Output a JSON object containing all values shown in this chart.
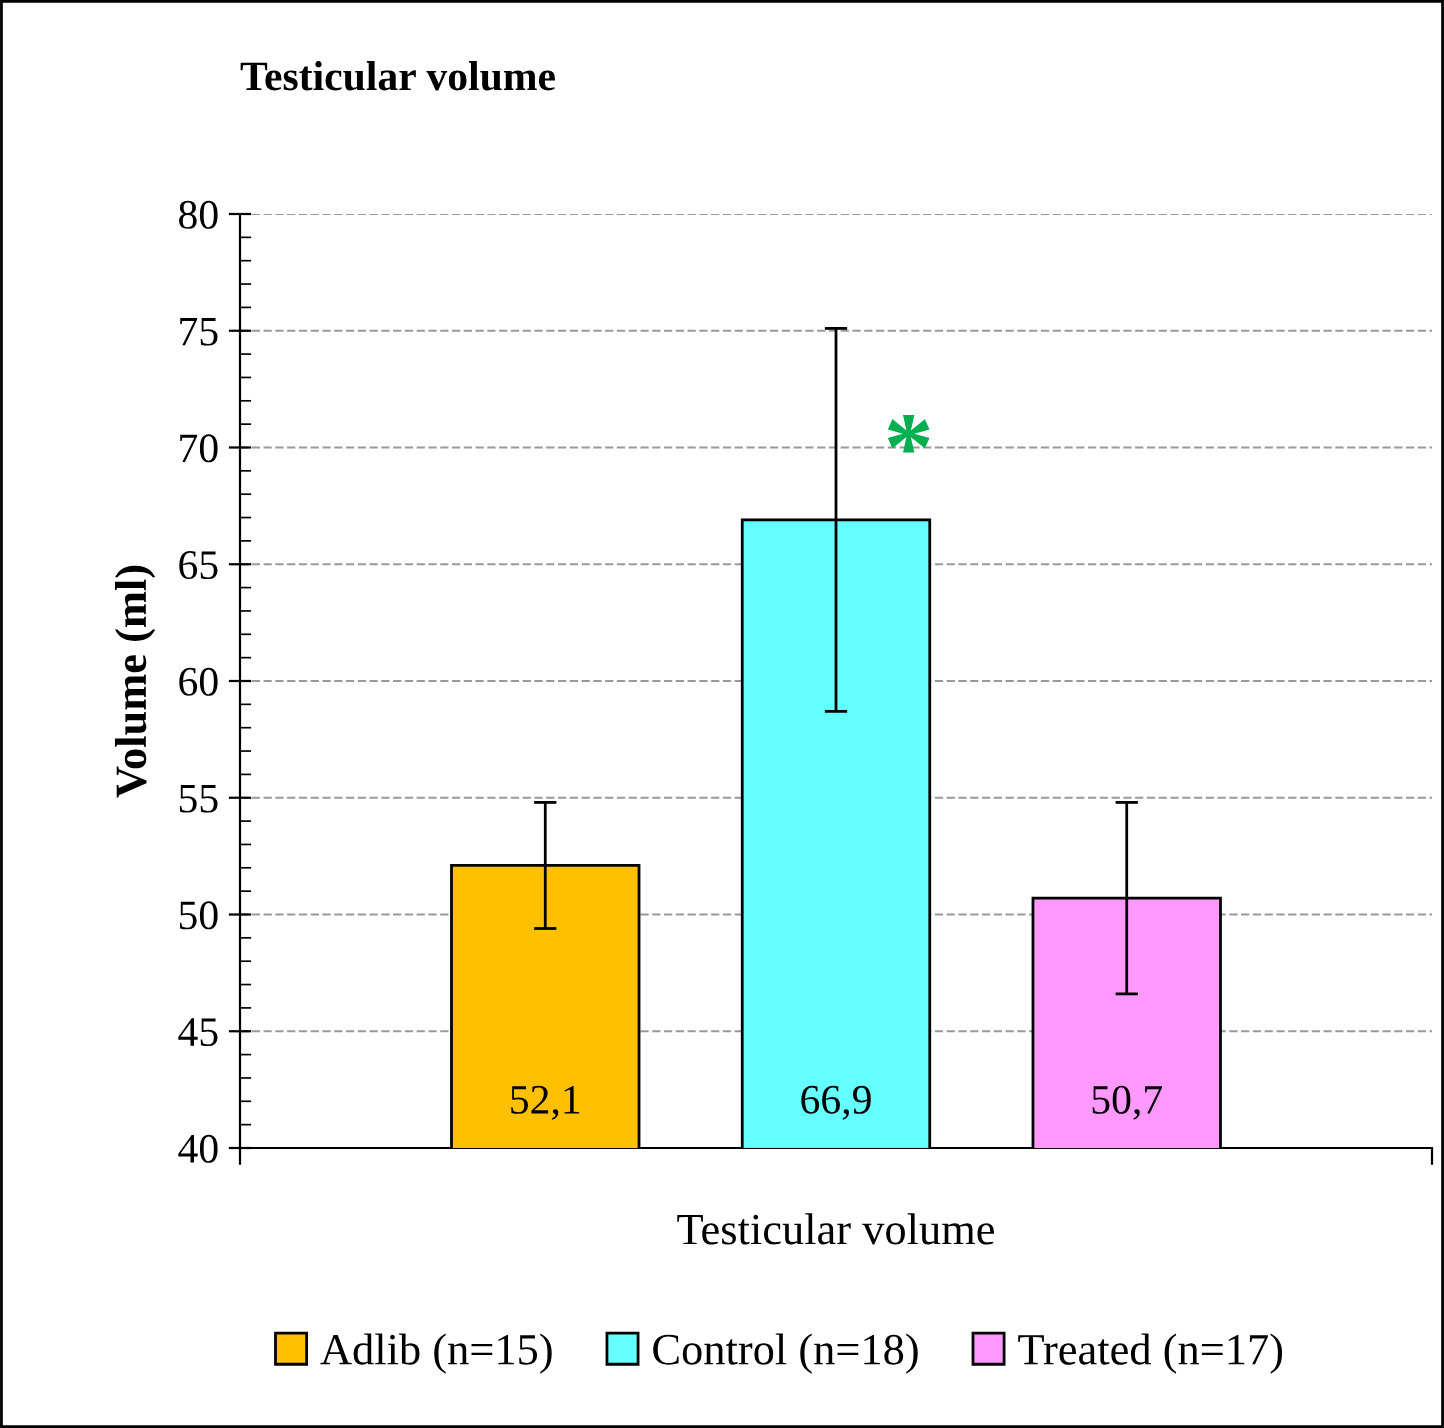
{
  "chart_data": {
    "type": "bar",
    "title": "Testicular volume",
    "xlabel": "Testicular volume",
    "ylabel": "Volume (ml)",
    "categories": [
      null,
      null,
      null
    ],
    "stacked": true,
    "series": [
      {
        "name": "Adlib (n=15)",
        "color": "#ffc000",
        "values": [
          52.1,
          null,
          null
        ],
        "errors": [
          2.7,
          null,
          null
        ],
        "value_labels": [
          "52,1",
          null,
          null
        ]
      },
      {
        "name": "Control (n=18)",
        "color": "#66ffff",
        "values": [
          null,
          66.9,
          null
        ],
        "errors": [
          null,
          8.2,
          null
        ],
        "value_labels": [
          null,
          "66,9",
          null
        ]
      },
      {
        "name": "Treated (n=17)",
        "color": "#ff99ff",
        "values": [
          null,
          null,
          50.7
        ],
        "errors": [
          null,
          null,
          4.1
        ],
        "value_labels": [
          null,
          null,
          "50,7"
        ]
      }
    ],
    "annotations": [
      "*"
    ],
    "ylim": [
      40,
      80
    ],
    "yticks": [
      40,
      45,
      50,
      55,
      60,
      65,
      70,
      75,
      80
    ],
    "grid": "y",
    "legend": "bottom",
    "tick_labels": "y"
  }
}
